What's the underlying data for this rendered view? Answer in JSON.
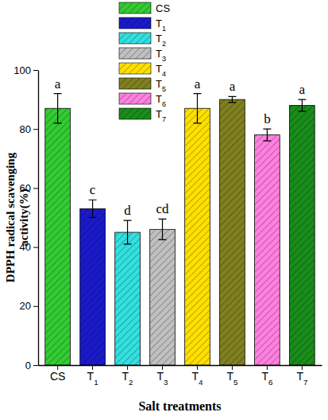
{
  "chart_data": {
    "type": "bar",
    "categories": [
      "CS",
      "T1",
      "T2",
      "T3",
      "T4",
      "T5",
      "T6",
      "T7"
    ],
    "values": [
      87,
      53,
      45,
      46,
      87,
      90,
      78,
      88
    ],
    "errors": [
      5,
      3,
      4,
      3.5,
      5,
      1,
      2,
      2
    ],
    "significance": [
      "a",
      "c",
      "d",
      "cd",
      "a",
      "a",
      "b",
      "a"
    ],
    "colors": [
      "#33cc33",
      "#1a1acc",
      "#33e0e0",
      "#c0c0c0",
      "#ffe000",
      "#808020",
      "#ff80e0",
      "#1a8c1a"
    ],
    "y_label": [
      "DPPH radical scavenging",
      "activity(%)"
    ],
    "x_label": "Salt treatments",
    "ylim": [
      0,
      100
    ],
    "yticks": [
      0,
      20,
      40,
      60,
      80,
      100
    ],
    "legend": "top"
  }
}
